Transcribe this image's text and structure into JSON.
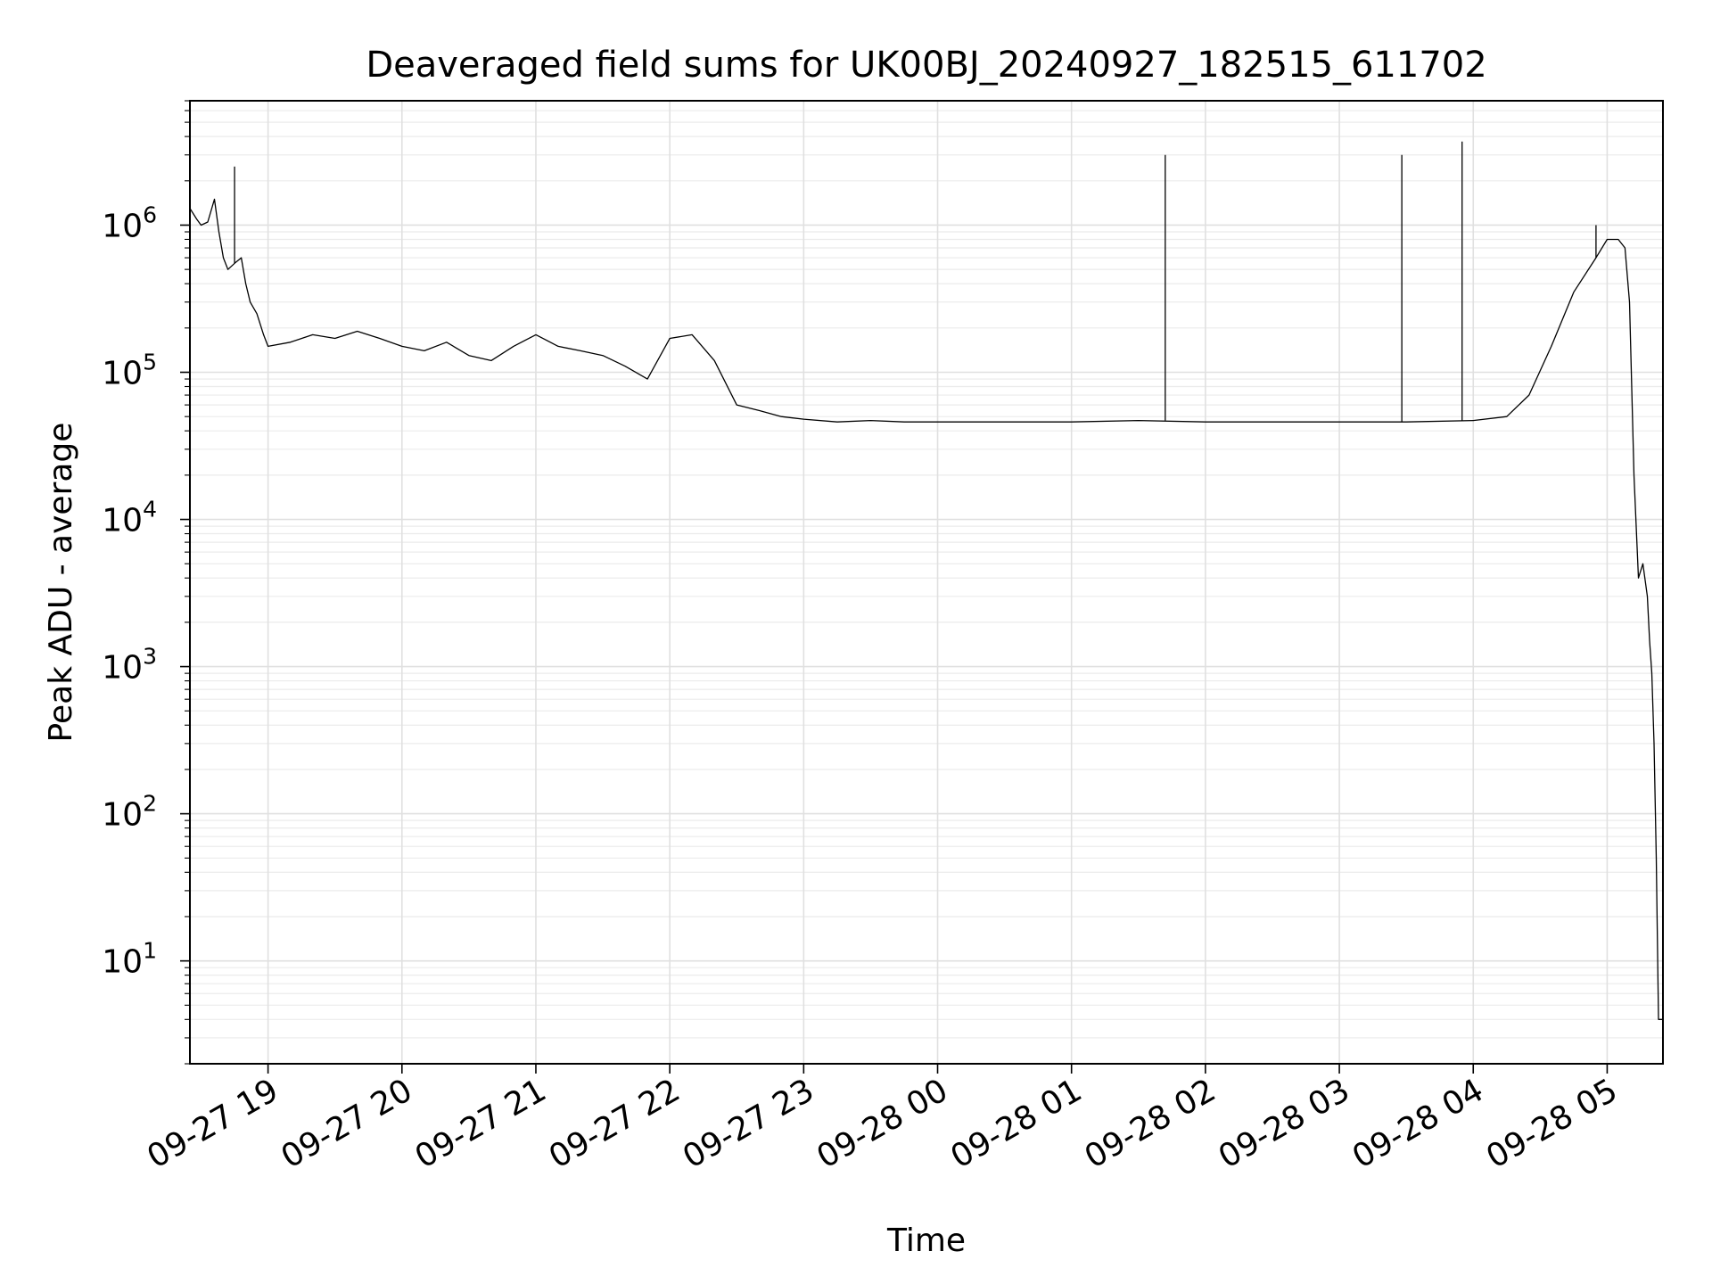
{
  "chart_data": {
    "type": "line",
    "title": "Deaveraged field sums for UK00BJ_20240927_182515_611702",
    "xlabel": "Time",
    "ylabel": "Peak ADU - average",
    "yscale": "log",
    "grid": true,
    "grid_color": "#e0e0e0",
    "line_color": "#000000",
    "xlim": [
      "2024-09-27 18:25",
      "2024-09-28 05:25"
    ],
    "ylim": [
      2,
      7000000
    ],
    "x_ticks": [
      {
        "value": "2024-09-27 19:00",
        "label": "09-27 19"
      },
      {
        "value": "2024-09-27 20:00",
        "label": "09-27 20"
      },
      {
        "value": "2024-09-27 21:00",
        "label": "09-27 21"
      },
      {
        "value": "2024-09-27 22:00",
        "label": "09-27 22"
      },
      {
        "value": "2024-09-27 23:00",
        "label": "09-27 23"
      },
      {
        "value": "2024-09-28 00:00",
        "label": "09-28 00"
      },
      {
        "value": "2024-09-28 01:00",
        "label": "09-28 01"
      },
      {
        "value": "2024-09-28 02:00",
        "label": "09-28 02"
      },
      {
        "value": "2024-09-28 03:00",
        "label": "09-28 03"
      },
      {
        "value": "2024-09-28 04:00",
        "label": "09-28 04"
      },
      {
        "value": "2024-09-28 05:00",
        "label": "09-28 05"
      }
    ],
    "y_ticks": [
      {
        "value": 10,
        "base": "10",
        "exp": "1"
      },
      {
        "value": 100,
        "base": "10",
        "exp": "2"
      },
      {
        "value": 1000,
        "base": "10",
        "exp": "3"
      },
      {
        "value": 10000,
        "base": "10",
        "exp": "4"
      },
      {
        "value": 100000,
        "base": "10",
        "exp": "5"
      },
      {
        "value": 1000000,
        "base": "10",
        "exp": "6"
      }
    ],
    "x": [
      "2024-09-27 18:25",
      "2024-09-27 18:28",
      "2024-09-27 18:30",
      "2024-09-27 18:33",
      "2024-09-27 18:36",
      "2024-09-27 18:38",
      "2024-09-27 18:40",
      "2024-09-27 18:42",
      "2024-09-27 18:45",
      "2024-09-27 18:48",
      "2024-09-27 18:50",
      "2024-09-27 18:52",
      "2024-09-27 18:55",
      "2024-09-27 18:58",
      "2024-09-27 19:00",
      "2024-09-27 19:10",
      "2024-09-27 19:20",
      "2024-09-27 19:30",
      "2024-09-27 19:40",
      "2024-09-27 19:50",
      "2024-09-27 20:00",
      "2024-09-27 20:10",
      "2024-09-27 20:20",
      "2024-09-27 20:30",
      "2024-09-27 20:40",
      "2024-09-27 20:50",
      "2024-09-27 21:00",
      "2024-09-27 21:10",
      "2024-09-27 21:20",
      "2024-09-27 21:30",
      "2024-09-27 21:40",
      "2024-09-27 21:50",
      "2024-09-27 22:00",
      "2024-09-27 22:10",
      "2024-09-27 22:20",
      "2024-09-27 22:30",
      "2024-09-27 22:40",
      "2024-09-27 22:50",
      "2024-09-27 23:00",
      "2024-09-27 23:15",
      "2024-09-27 23:30",
      "2024-09-27 23:45",
      "2024-09-28 00:00",
      "2024-09-28 00:30",
      "2024-09-28 01:00",
      "2024-09-28 01:30",
      "2024-09-28 02:00",
      "2024-09-28 02:30",
      "2024-09-28 03:00",
      "2024-09-28 03:30",
      "2024-09-28 04:00",
      "2024-09-28 04:15",
      "2024-09-28 04:25",
      "2024-09-28 04:35",
      "2024-09-28 04:45",
      "2024-09-28 04:55",
      "2024-09-28 05:00",
      "2024-09-28 05:05",
      "2024-09-28 05:08",
      "2024-09-28 05:10",
      "2024-09-28 05:12",
      "2024-09-28 05:14",
      "2024-09-28 05:16",
      "2024-09-28 05:18",
      "2024-09-28 05:19",
      "2024-09-28 05:20",
      "2024-09-28 05:21",
      "2024-09-28 05:22",
      "2024-09-28 05:23",
      "2024-09-28 05:25"
    ],
    "series": [
      {
        "values": [
          1300000,
          1100000,
          1000000,
          1050000,
          1500000,
          900000,
          600000,
          500000,
          550000,
          600000,
          400000,
          300000,
          250000,
          180000,
          150000,
          160000,
          180000,
          170000,
          190000,
          170000,
          150000,
          140000,
          160000,
          130000,
          120000,
          150000,
          180000,
          150000,
          140000,
          130000,
          110000,
          90000,
          170000,
          180000,
          120000,
          60000,
          55000,
          50000,
          48000,
          46000,
          47000,
          46000,
          46000,
          46000,
          46000,
          47000,
          46000,
          46000,
          46000,
          46000,
          47000,
          50000,
          70000,
          150000,
          350000,
          600000,
          800000,
          800000,
          700000,
          300000,
          20000,
          4000,
          5000,
          3000,
          1500,
          900,
          300,
          50,
          4,
          4
        ],
        "spikes": [
          {
            "x": "2024-09-27 18:45",
            "y": 2500000
          },
          {
            "x": "2024-09-28 01:42",
            "y": 3000000
          },
          {
            "x": "2024-09-28 03:28",
            "y": 3000000
          },
          {
            "x": "2024-09-28 03:55",
            "y": 3700000
          },
          {
            "x": "2024-09-28 04:55",
            "y": 1000000
          }
        ]
      }
    ]
  }
}
